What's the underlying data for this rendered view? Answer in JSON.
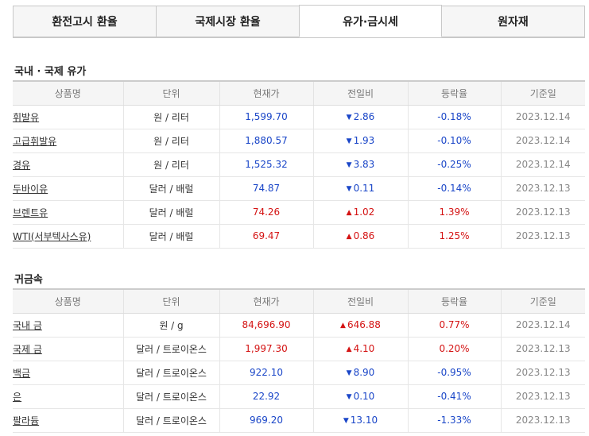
{
  "tabs": [
    {
      "label": "환전고시 환율",
      "active": false
    },
    {
      "label": "국제시장 환율",
      "active": false
    },
    {
      "label": "유가·금시세",
      "active": true
    },
    {
      "label": "원자재",
      "active": false
    }
  ],
  "oil": {
    "title": "국내 · 국제 유가",
    "headers": [
      "상품명",
      "단위",
      "현재가",
      "전일비",
      "등락율",
      "기준일"
    ],
    "rows": [
      {
        "name": "휘발유",
        "unit": "원 / 리터",
        "price": "1,599.70",
        "change": "2.86",
        "direction": "down",
        "rate": "-0.18%",
        "date": "2023.12.14"
      },
      {
        "name": "고급휘발유",
        "unit": "원 / 리터",
        "price": "1,880.57",
        "change": "1.93",
        "direction": "down",
        "rate": "-0.10%",
        "date": "2023.12.14"
      },
      {
        "name": "경유",
        "unit": "원 / 리터",
        "price": "1,525.32",
        "change": "3.83",
        "direction": "down",
        "rate": "-0.25%",
        "date": "2023.12.14"
      },
      {
        "name": "두바이유",
        "unit": "달러 / 배럴",
        "price": "74.87",
        "change": "0.11",
        "direction": "down",
        "rate": "-0.14%",
        "date": "2023.12.13"
      },
      {
        "name": "브렌트유",
        "unit": "달러 / 배럴",
        "price": "74.26",
        "change": "1.02",
        "direction": "up",
        "rate": "1.39%",
        "date": "2023.12.13"
      },
      {
        "name": "WTI(서부텍사스유)",
        "unit": "달러 / 배럴",
        "price": "69.47",
        "change": "0.86",
        "direction": "up",
        "rate": "1.25%",
        "date": "2023.12.13"
      }
    ]
  },
  "metals": {
    "title": "귀금속",
    "headers": [
      "상품명",
      "단위",
      "현재가",
      "전일비",
      "등락율",
      "기준일"
    ],
    "rows": [
      {
        "name": "국내 금",
        "unit": "원 / g",
        "price": "84,696.90",
        "change": "646.88",
        "direction": "up",
        "rate": "0.77%",
        "date": "2023.12.14"
      },
      {
        "name": "국제 금",
        "unit": "달러 / 트로이온스",
        "price": "1,997.30",
        "change": "4.10",
        "direction": "up",
        "rate": "0.20%",
        "date": "2023.12.13"
      },
      {
        "name": "백금",
        "unit": "달러 / 트로이온스",
        "price": "922.10",
        "change": "8.90",
        "direction": "down",
        "rate": "-0.95%",
        "date": "2023.12.13"
      },
      {
        "name": "은",
        "unit": "달러 / 트로이온스",
        "price": "22.92",
        "change": "0.10",
        "direction": "down",
        "rate": "-0.41%",
        "date": "2023.12.13"
      },
      {
        "name": "팔라듐",
        "unit": "달러 / 트로이온스",
        "price": "969.20",
        "change": "13.10",
        "direction": "down",
        "rate": "-1.33%",
        "date": "2023.12.13"
      }
    ]
  },
  "colors": {
    "up": "#d41313",
    "down": "#1a46c8",
    "muted": "#888888"
  },
  "icons": {
    "up": "up-triangle-icon",
    "down": "down-triangle-icon"
  }
}
